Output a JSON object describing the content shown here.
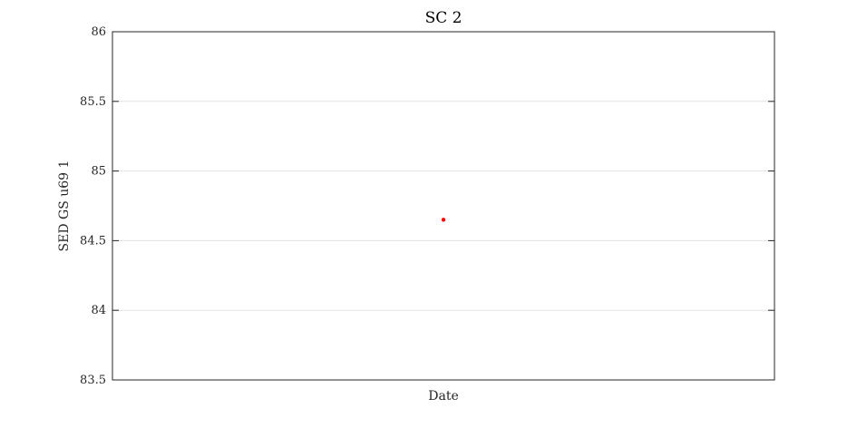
{
  "chart_data": {
    "type": "scatter",
    "title": "SC 2",
    "xlabel": "Date",
    "ylabel": "SED GS u69 1",
    "ylim": [
      83.5,
      86
    ],
    "yticks": [
      83.5,
      84,
      84.5,
      85,
      85.5,
      86
    ],
    "ytick_labels": [
      "83.5",
      "84",
      "84.5",
      "85",
      "85.5",
      "86"
    ],
    "grid": "horizontal",
    "series": [
      {
        "color": "#ff0000",
        "points": [
          {
            "x": "",
            "y": 84.65
          }
        ]
      }
    ]
  }
}
